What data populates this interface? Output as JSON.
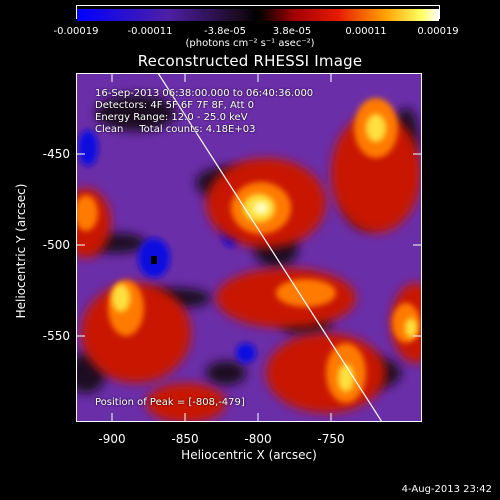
{
  "colorbar": {
    "ticks": [
      "-0.00019",
      "-0.00011",
      "-3.8e-05",
      "3.8e-05",
      "0.00011",
      "0.00019"
    ],
    "units": "(photons cm⁻² s⁻¹ asec⁻²)"
  },
  "title": "Reconstructed RHESSI Image",
  "info": {
    "time": "16-Sep-2013 06:38:00.000 to 06:40:36.000",
    "detectors": "Detectors: 4F 5F 6F 7F 8F, Att 0",
    "energy": "Energy Range: 12.0 - 25.0 keV",
    "clean": "Clean     Total counts: 4.18E+03",
    "peak": "Position of Peak = [-808,-479]"
  },
  "axes": {
    "xlabel": "Heliocentric X (arcsec)",
    "ylabel": "Heliocentric Y (arcsec)",
    "xticks": [
      "-900",
      "-850",
      "-800",
      "-750"
    ],
    "yticks": [
      "-450",
      "-500",
      "-550"
    ]
  },
  "timestamp": "4-Aug-2013 23:42",
  "chart_data": {
    "type": "heatmap",
    "title": "Reconstructed RHESSI Image",
    "xlabel": "Heliocentric X (arcsec)",
    "ylabel": "Heliocentric Y (arcsec)",
    "xlim": [
      -910,
      -720
    ],
    "ylim": [
      -600,
      -408
    ],
    "colorbar_range": [
      -0.00019,
      0.00019
    ],
    "peak": [
      -808,
      -479
    ],
    "limb": [
      [
        -870,
        -408
      ],
      [
        -742,
        -600
      ]
    ]
  }
}
